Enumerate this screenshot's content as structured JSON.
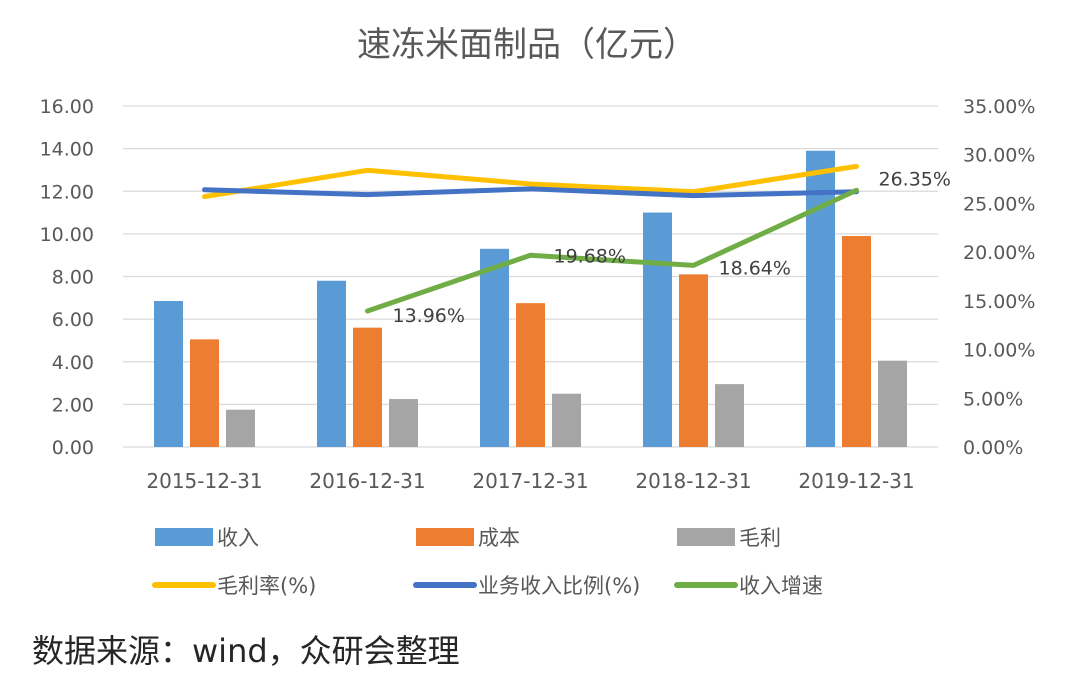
{
  "chart_data": {
    "type": "bar",
    "title": "速冻米面制品（亿元）",
    "categories": [
      "2015-12-31",
      "2016-12-31",
      "2017-12-31",
      "2018-12-31",
      "2019-12-31"
    ],
    "ylim": [
      0,
      16
    ],
    "y_ticks": [
      "0.00",
      "2.00",
      "4.00",
      "6.00",
      "8.00",
      "10.00",
      "12.00",
      "14.00",
      "16.00"
    ],
    "y2lim": [
      0,
      35
    ],
    "y2_ticks": [
      "0.00%",
      "5.00%",
      "10.00%",
      "15.00%",
      "20.00%",
      "25.00%",
      "30.00%",
      "35.00%"
    ],
    "series": [
      {
        "name": "收入",
        "kind": "bar",
        "axis": "left",
        "color": "#5B9BD5",
        "values": [
          6.85,
          7.8,
          9.3,
          11.0,
          13.9
        ]
      },
      {
        "name": "成本",
        "kind": "bar",
        "axis": "left",
        "color": "#ED7D31",
        "values": [
          5.05,
          5.6,
          6.75,
          8.1,
          9.9
        ]
      },
      {
        "name": "毛利",
        "kind": "bar",
        "axis": "left",
        "color": "#A5A5A5",
        "values": [
          1.75,
          2.25,
          2.5,
          2.95,
          4.05
        ]
      },
      {
        "name": "毛利率(%)",
        "kind": "line",
        "axis": "right",
        "color": "#FFC000",
        "values": [
          25.7,
          28.4,
          27.0,
          26.2,
          28.8
        ]
      },
      {
        "name": "业务收入比例(%)",
        "kind": "line",
        "axis": "right",
        "color": "#4472C4",
        "values": [
          26.4,
          25.9,
          26.5,
          25.8,
          26.2
        ]
      },
      {
        "name": "收入增速",
        "kind": "line",
        "axis": "right",
        "color": "#70AD47",
        "values": [
          null,
          13.96,
          19.68,
          18.64,
          26.35
        ],
        "labels": [
          null,
          "13.96%",
          "19.68%",
          "18.64%",
          "26.35%"
        ]
      }
    ],
    "legend_position": "bottom"
  },
  "source_text": "数据来源：wind，众研会整理"
}
